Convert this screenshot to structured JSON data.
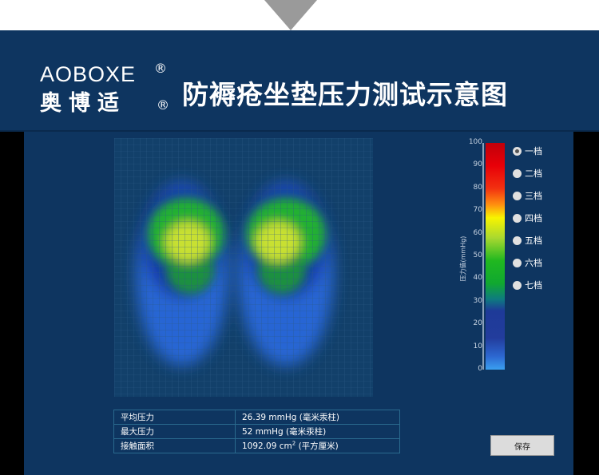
{
  "brand": {
    "english": "AOBOXE",
    "chinese": "奥博适",
    "registered": "®"
  },
  "title": "防褥疮坐垫压力测试示意图",
  "scale": {
    "label": "压力值(mmHg)",
    "ticks": [
      "100",
      "90",
      "80",
      "70",
      "60",
      "50",
      "40",
      "30",
      "20",
      "10",
      "0"
    ]
  },
  "levels": [
    {
      "label": "一档",
      "selected": true
    },
    {
      "label": "二档",
      "selected": false
    },
    {
      "label": "三档",
      "selected": false
    },
    {
      "label": "四档",
      "selected": false
    },
    {
      "label": "五档",
      "selected": false
    },
    {
      "label": "六档",
      "selected": false
    },
    {
      "label": "七档",
      "selected": false
    }
  ],
  "stats": [
    {
      "label": "平均压力",
      "value": "26.39 mmHg (毫米汞柱)"
    },
    {
      "label": "最大压力",
      "value": "52 mmHg (毫米汞柱)"
    },
    {
      "label": "接触面积",
      "value": "1092.09 cm",
      "sup": "2",
      "unit": " (平方厘米)"
    }
  ],
  "save_label": "保存",
  "colors": {
    "header": "#0e3560",
    "panel": "#0e3560"
  }
}
